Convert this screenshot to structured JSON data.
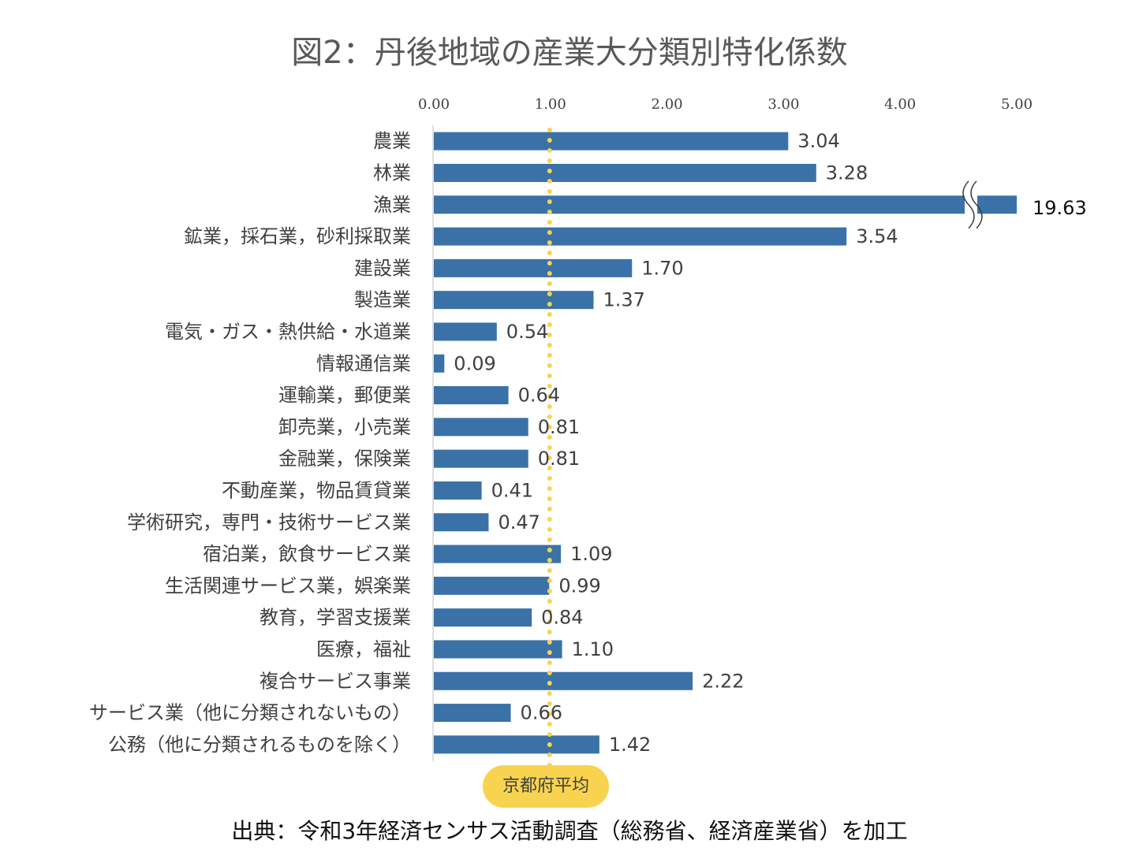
{
  "colors": {
    "bar": "#3a72a8",
    "avg_line": "#f8d34f",
    "axis": "#bfbfbf",
    "text": "#404040"
  },
  "chart_data": {
    "type": "bar",
    "orientation": "horizontal",
    "title": "図2：丹後地域の産業大分類別特化係数",
    "xlim": [
      0,
      5
    ],
    "x_ticks": [
      "0.00",
      "1.00",
      "2.00",
      "3.00",
      "4.00",
      "5.00"
    ],
    "axis_break": {
      "category": "漁業",
      "display": "broken"
    },
    "categories": [
      "農業",
      "林業",
      "漁業",
      "鉱業，採石業，砂利採取業",
      "建設業",
      "製造業",
      "電気・ガス・熱供給・水道業",
      "情報通信業",
      "運輸業，郵便業",
      "卸売業，小売業",
      "金融業，保険業",
      "不動産業，物品賃貸業",
      "学術研究，専門・技術サービス業",
      "宿泊業，飲食サービス業",
      "生活関連サービス業，娯楽業",
      "教育，学習支援業",
      "医療，福祉",
      "複合サービス事業",
      "サービス業（他に分類されないもの）",
      "公務（他に分類されるものを除く）"
    ],
    "values": [
      3.04,
      3.28,
      19.63,
      3.54,
      1.7,
      1.37,
      0.54,
      0.09,
      0.64,
      0.81,
      0.81,
      0.41,
      0.47,
      1.09,
      0.99,
      0.84,
      1.1,
      2.22,
      0.66,
      1.42
    ],
    "value_labels": [
      "3.04",
      "3.28",
      "19.63",
      "3.54",
      "1.70",
      "1.37",
      "0.54",
      "0.09",
      "0.64",
      "0.81",
      "0.81",
      "0.41",
      "0.47",
      "1.09",
      "0.99",
      "0.84",
      "1.10",
      "2.22",
      "0.66",
      "1.42"
    ],
    "reference_line": {
      "value": 1.0,
      "label": "京都府平均",
      "style": "dotted"
    }
  },
  "source": "出典：令和3年経済センサス活動調査（総務省、経済産業省）を加工"
}
